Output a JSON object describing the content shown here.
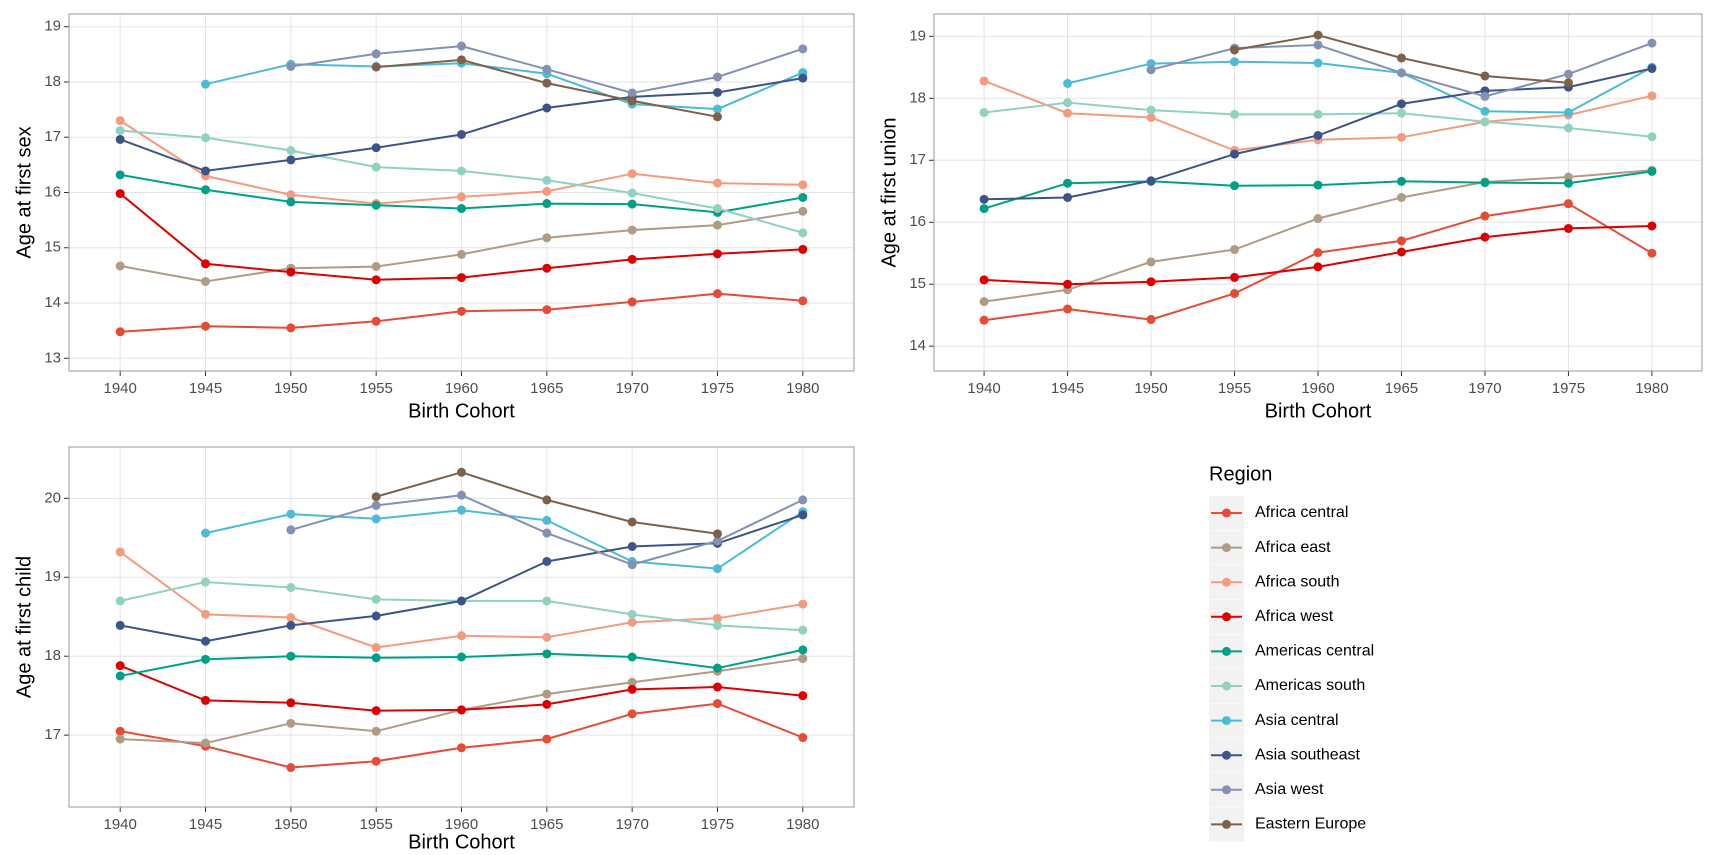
{
  "chart_data": [
    {
      "type": "line",
      "xlabel": "Birth Cohort",
      "ylabel": "Age at first sex",
      "legend_title": "Region",
      "x": [
        1940,
        1945,
        1950,
        1955,
        1960,
        1965,
        1970,
        1975,
        1980
      ],
      "xlim": [
        1937,
        1983
      ],
      "xticks": [
        1940,
        1945,
        1950,
        1955,
        1960,
        1965,
        1970,
        1975,
        1980
      ],
      "ylim": [
        12.77,
        19.23
      ],
      "yticks": [
        13,
        14,
        15,
        16,
        17,
        18,
        19
      ],
      "grid": true,
      "series": [
        {
          "name": "Africa central",
          "color": "#e64b35",
          "values": [
            13.48,
            13.58,
            13.55,
            13.67,
            13.85,
            13.88,
            14.02,
            14.17,
            14.04
          ]
        },
        {
          "name": "Africa east",
          "color": "#b09c85",
          "values": [
            14.67,
            14.39,
            14.63,
            14.66,
            14.88,
            15.18,
            15.32,
            15.41,
            15.66
          ]
        },
        {
          "name": "Africa south",
          "color": "#f39b7f",
          "values": [
            17.3,
            16.3,
            15.96,
            15.8,
            15.92,
            16.02,
            16.34,
            16.17,
            16.14
          ]
        },
        {
          "name": "Africa west",
          "color": "#dc0000",
          "values": [
            15.98,
            14.71,
            14.56,
            14.42,
            14.46,
            14.63,
            14.79,
            14.89,
            14.97
          ]
        },
        {
          "name": "Americas central",
          "color": "#00a087",
          "values": [
            16.32,
            16.05,
            15.83,
            15.77,
            15.71,
            15.8,
            15.79,
            15.64,
            15.91
          ]
        },
        {
          "name": "Americas south",
          "color": "#91d1c2",
          "values": [
            17.12,
            16.99,
            16.76,
            16.46,
            16.39,
            16.22,
            15.99,
            15.71,
            15.27
          ]
        },
        {
          "name": "Asia central",
          "color": "#4dbbd5",
          "values": [
            null,
            17.96,
            18.32,
            18.28,
            18.34,
            18.15,
            17.6,
            17.51,
            18.17
          ]
        },
        {
          "name": "Asia southeast",
          "color": "#3c5488",
          "values": [
            16.96,
            16.39,
            16.59,
            16.81,
            17.05,
            17.53,
            17.73,
            17.81,
            18.07
          ]
        },
        {
          "name": "Asia west",
          "color": "#8491b4",
          "values": [
            null,
            null,
            18.28,
            18.51,
            18.65,
            18.23,
            17.8,
            18.09,
            18.6
          ]
        },
        {
          "name": "Eastern Europe",
          "color": "#7e6148",
          "values": [
            null,
            null,
            null,
            18.27,
            18.4,
            17.98,
            17.66,
            17.37,
            null
          ]
        }
      ]
    },
    {
      "type": "line",
      "xlabel": "Birth Cohort",
      "ylabel": "Age at first union",
      "x": [
        1940,
        1945,
        1950,
        1955,
        1960,
        1965,
        1970,
        1975,
        1980
      ],
      "xlim": [
        1937,
        1983
      ],
      "xticks": [
        1940,
        1945,
        1950,
        1955,
        1960,
        1965,
        1970,
        1975,
        1980
      ],
      "ylim": [
        13.6,
        19.36
      ],
      "yticks": [
        14,
        15,
        16,
        17,
        18,
        19
      ],
      "grid": true,
      "series": [
        {
          "name": "Africa central",
          "color": "#e64b35",
          "values": [
            14.42,
            14.6,
            14.43,
            14.85,
            15.51,
            15.7,
            16.1,
            16.3,
            15.5
          ]
        },
        {
          "name": "Africa east",
          "color": "#b09c85",
          "values": [
            14.72,
            14.91,
            15.36,
            15.56,
            16.06,
            16.4,
            16.65,
            16.73,
            16.84
          ]
        },
        {
          "name": "Africa south",
          "color": "#f39b7f",
          "values": [
            18.28,
            17.76,
            17.69,
            17.16,
            17.33,
            17.37,
            17.62,
            17.73,
            18.04
          ]
        },
        {
          "name": "Africa west",
          "color": "#dc0000",
          "values": [
            15.07,
            15.0,
            15.04,
            15.11,
            15.28,
            15.52,
            15.76,
            15.9,
            15.94
          ]
        },
        {
          "name": "Americas central",
          "color": "#00a087",
          "values": [
            16.22,
            16.63,
            16.66,
            16.59,
            16.6,
            16.66,
            16.64,
            16.63,
            16.82
          ]
        },
        {
          "name": "Americas south",
          "color": "#91d1c2",
          "values": [
            17.77,
            17.93,
            17.81,
            17.74,
            17.74,
            17.76,
            17.62,
            17.52,
            17.38
          ]
        },
        {
          "name": "Asia central",
          "color": "#4dbbd5",
          "values": [
            null,
            18.24,
            18.56,
            18.59,
            18.57,
            18.41,
            17.79,
            17.77,
            18.5
          ]
        },
        {
          "name": "Asia southeast",
          "color": "#3c5488",
          "values": [
            16.37,
            16.4,
            16.67,
            17.1,
            17.4,
            17.91,
            18.12,
            18.18,
            18.48
          ]
        },
        {
          "name": "Asia west",
          "color": "#8491b4",
          "values": [
            null,
            null,
            18.46,
            18.81,
            18.86,
            18.41,
            18.03,
            18.39,
            18.89
          ]
        },
        {
          "name": "Eastern Europe",
          "color": "#7e6148",
          "values": [
            null,
            null,
            null,
            18.78,
            19.02,
            18.65,
            18.36,
            18.25,
            null
          ]
        }
      ]
    },
    {
      "type": "line",
      "xlabel": "Birth Cohort",
      "ylabel": "Age at first child",
      "x": [
        1940,
        1945,
        1950,
        1955,
        1960,
        1965,
        1970,
        1975,
        1980
      ],
      "xlim": [
        1937,
        1983
      ],
      "xticks": [
        1940,
        1945,
        1950,
        1955,
        1960,
        1965,
        1970,
        1975,
        1980
      ],
      "ylim": [
        16.09,
        20.65
      ],
      "yticks": [
        17,
        18,
        19,
        20
      ],
      "grid": true,
      "series": [
        {
          "name": "Africa central",
          "color": "#e64b35",
          "values": [
            17.05,
            16.86,
            16.59,
            16.67,
            16.84,
            16.95,
            17.27,
            17.4,
            16.97
          ]
        },
        {
          "name": "Africa east",
          "color": "#b09c85",
          "values": [
            16.95,
            16.9,
            17.15,
            17.05,
            17.32,
            17.52,
            17.67,
            17.81,
            17.97
          ]
        },
        {
          "name": "Africa south",
          "color": "#f39b7f",
          "values": [
            19.32,
            18.53,
            18.49,
            18.11,
            18.26,
            18.24,
            18.43,
            18.48,
            18.66
          ]
        },
        {
          "name": "Africa west",
          "color": "#dc0000",
          "values": [
            17.88,
            17.44,
            17.41,
            17.31,
            17.32,
            17.39,
            17.58,
            17.61,
            17.5
          ]
        },
        {
          "name": "Americas central",
          "color": "#00a087",
          "values": [
            17.75,
            17.96,
            18.0,
            17.98,
            17.99,
            18.03,
            17.99,
            17.85,
            18.08
          ]
        },
        {
          "name": "Americas south",
          "color": "#91d1c2",
          "values": [
            18.7,
            18.94,
            18.87,
            18.72,
            18.7,
            18.7,
            18.53,
            18.39,
            18.33
          ]
        },
        {
          "name": "Asia central",
          "color": "#4dbbd5",
          "values": [
            null,
            19.56,
            19.8,
            19.74,
            19.85,
            19.72,
            19.2,
            19.11,
            19.83
          ]
        },
        {
          "name": "Asia southeast",
          "color": "#3c5488",
          "values": [
            18.39,
            18.19,
            18.39,
            18.51,
            18.7,
            19.2,
            19.39,
            19.43,
            19.79
          ]
        },
        {
          "name": "Asia west",
          "color": "#8491b4",
          "values": [
            null,
            null,
            19.6,
            19.91,
            20.04,
            19.56,
            19.16,
            19.46,
            19.98
          ]
        },
        {
          "name": "Eastern Europe",
          "color": "#7e6148",
          "values": [
            null,
            null,
            null,
            20.02,
            20.33,
            19.98,
            19.7,
            19.55,
            null
          ]
        }
      ]
    }
  ]
}
